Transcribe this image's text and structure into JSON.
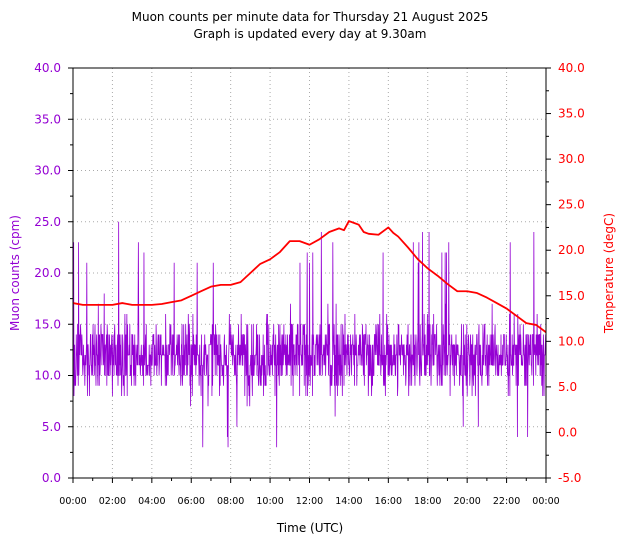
{
  "chart_data": {
    "type": "line",
    "title": "Muon counts per minute data for Thursday 21 August 2025",
    "subtitle": "Graph is updated every day at 9.30am",
    "xlabel": "Time (UTC)",
    "ylabel_left": "Muon counts (cpm)",
    "ylabel_right": "Temperature (degC)",
    "x_ticks": [
      "00:00",
      "02:00",
      "04:00",
      "06:00",
      "08:00",
      "10:00",
      "12:00",
      "14:00",
      "16:00",
      "18:00",
      "20:00",
      "22:00",
      "00:00"
    ],
    "xlim_hours": [
      0,
      24
    ],
    "ylim_left": [
      0,
      40
    ],
    "ylim_right": [
      -5,
      40
    ],
    "y_ticks_left": [
      "0.0",
      "5.0",
      "10.0",
      "15.0",
      "20.0",
      "25.0",
      "30.0",
      "35.0",
      "40.0"
    ],
    "y_ticks_right": [
      "-5.0",
      "0.0",
      "5.0",
      "10.0",
      "15.0",
      "20.0",
      "25.0",
      "30.0",
      "35.0",
      "40.0"
    ],
    "grid": true,
    "colors": {
      "muon": "#9400d3",
      "temperature": "#ff0000"
    },
    "series": [
      {
        "axis": "left",
        "summary": "one reading per minute, fluctuating mostly between 7 and 17 cpm, spikes up to 25 and dips down to about 3",
        "mean": 12,
        "min": 3,
        "max": 25
      },
      {
        "axis": "right",
        "x_hours": [
          0,
          0.5,
          1,
          1.5,
          2,
          2.5,
          3,
          3.5,
          4,
          4.5,
          5,
          5.5,
          6,
          6.5,
          7,
          7.5,
          8,
          8.5,
          9,
          9.5,
          10,
          10.5,
          11,
          11.25,
          11.5,
          12,
          12.5,
          13,
          13.5,
          13.75,
          14,
          14.25,
          14.5,
          14.75,
          15,
          15.5,
          16,
          16.25,
          16.5,
          17,
          17.5,
          18,
          18.5,
          19,
          19.5,
          20,
          20.5,
          21,
          21.5,
          22,
          22.5,
          23,
          23.5,
          24
        ],
        "values": [
          14.2,
          14,
          14,
          14,
          14,
          14.2,
          14,
          14,
          14,
          14.1,
          14.3,
          14.5,
          15,
          15.5,
          16,
          16.2,
          16.2,
          16.5,
          17.5,
          18.5,
          19,
          19.8,
          21,
          21,
          21,
          20.6,
          21.2,
          22,
          22.4,
          22.2,
          23.2,
          23,
          22.8,
          22,
          21.8,
          21.7,
          22.5,
          21.9,
          21.5,
          20.3,
          19,
          18,
          17.2,
          16.3,
          15.5,
          15.5,
          15.3,
          14.8,
          14.2,
          13.6,
          12.8,
          12,
          11.8,
          11
        ]
      }
    ]
  }
}
